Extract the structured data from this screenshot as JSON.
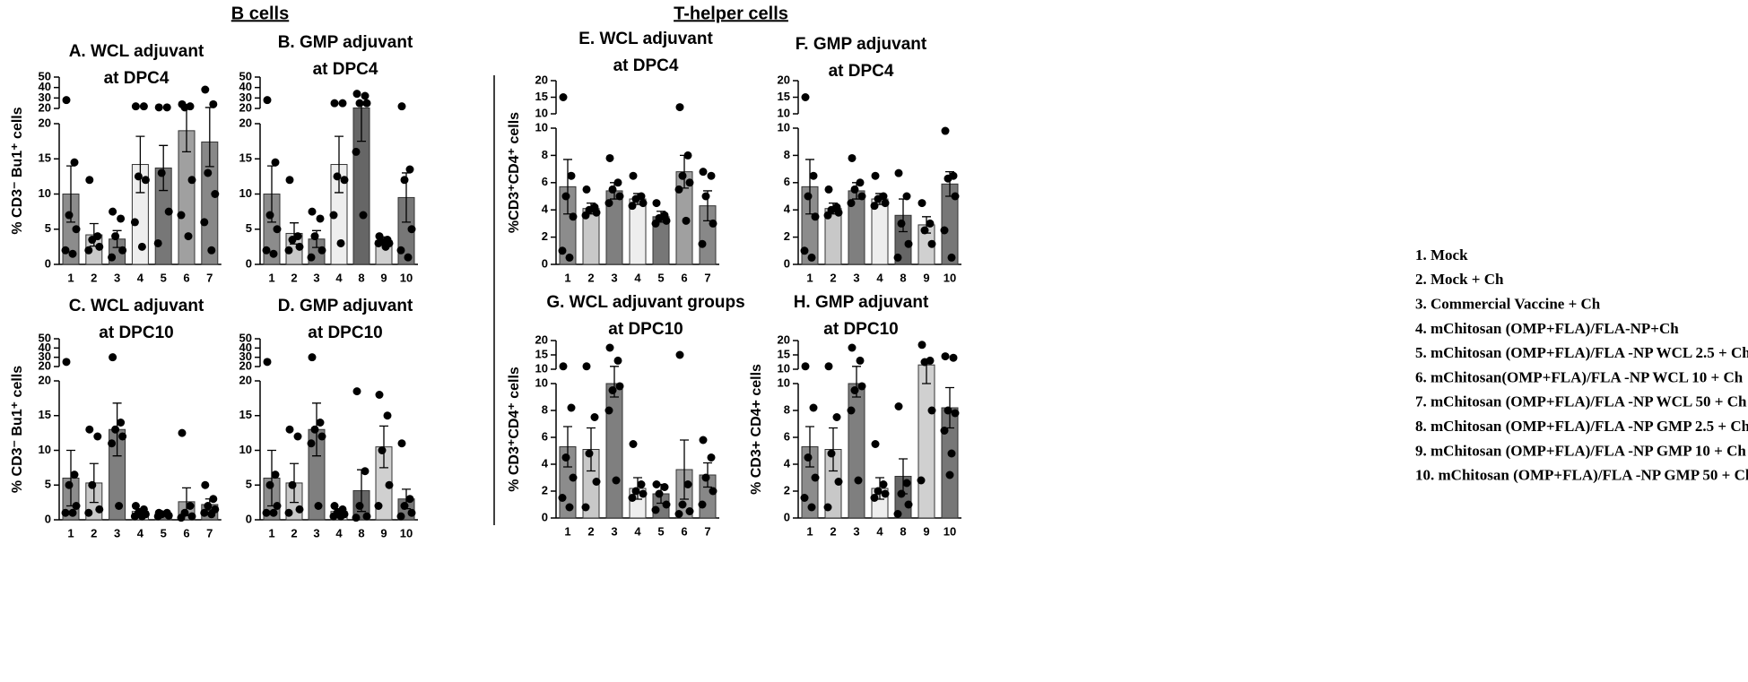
{
  "headers": [
    "B cells",
    "T-helper cells"
  ],
  "legend": [
    "1.   Mock",
    "2.   Mock + Ch",
    "3.   Commercial Vaccine + Ch",
    "4.   mChitosan (OMP+FLA)/FLA-NP+Ch",
    "5.   mChitosan (OMP+FLA)/FLA -NP WCL 2.5 + Ch",
    "6.   mChitosan(OMP+FLA)/FLA -NP WCL 10 + Ch",
    "7.   mChitosan (OMP+FLA)/FLA -NP WCL 50 + Ch",
    "8.   mChitosan (OMP+FLA)/FLA -NP GMP 2.5 + Ch",
    "9.   mChitosan (OMP+FLA)/FLA -NP GMP 10 + Ch",
    "10. mChitosan (OMP+FLA)/FLA -NP GMP 50 + Ch"
  ],
  "chart_data": [
    {
      "type": "bar",
      "title": [
        "A.  WCL adjuvant",
        "at DPC4"
      ],
      "ylabel": "% CD3⁻ Bu1⁺ cells",
      "categories": [
        "1",
        "2",
        "3",
        "4",
        "5",
        "6",
        "7"
      ],
      "colors": [
        "#8c8c8c",
        "#c8c8c8",
        "#7f7f7f",
        "#eeeeee",
        "#777777",
        "#a0a0a0",
        "#888888"
      ],
      "values": [
        10,
        4.2,
        3.6,
        14.2,
        13.7,
        19,
        17.4
      ],
      "errors": [
        4,
        1.6,
        1.2,
        4,
        3.2,
        3,
        3.5
      ],
      "points": [
        [
          28,
          14.5,
          7,
          5,
          2,
          1.5
        ],
        [
          12,
          4,
          3.5,
          2.5,
          2
        ],
        [
          7.5,
          6.5,
          4,
          2,
          1
        ],
        [
          22,
          22,
          12.5,
          12,
          6,
          2.5
        ],
        [
          21,
          21,
          13,
          7.5,
          3
        ],
        [
          24,
          22,
          21,
          12,
          7,
          4
        ],
        [
          38,
          24,
          13,
          10,
          6,
          2
        ]
      ],
      "segments": [
        {
          "ylim": [
            0,
            20
          ],
          "yticks": [
            0,
            5,
            10,
            15,
            20
          ]
        },
        {
          "ylim": [
            20,
            50
          ],
          "yticks": [
            20,
            30,
            40,
            50
          ]
        }
      ]
    },
    {
      "type": "bar",
      "title": [
        "B.  GMP adjuvant",
        "at DPC4"
      ],
      "ylabel": "",
      "categories": [
        "1",
        "2",
        "3",
        "4",
        "8",
        "9",
        "10"
      ],
      "colors": [
        "#8c8c8c",
        "#c8c8c8",
        "#7f7f7f",
        "#eeeeee",
        "#666666",
        "#d0d0d0",
        "#777777"
      ],
      "values": [
        10,
        4.4,
        3.6,
        14.2,
        20.5,
        3.4,
        9.5
      ],
      "errors": [
        4,
        1.5,
        1.2,
        4,
        3,
        0.5,
        3.5
      ],
      "points": [
        [
          28,
          14.5,
          7,
          5,
          2,
          1.5
        ],
        [
          12,
          4,
          3.5,
          2.5,
          2
        ],
        [
          7.5,
          6.5,
          4,
          2,
          1
        ],
        [
          25,
          25,
          12.5,
          12,
          7,
          3
        ],
        [
          34,
          32,
          25,
          25,
          16,
          7
        ],
        [
          4,
          3.5,
          3.2,
          3,
          3,
          2.5
        ],
        [
          22,
          13.5,
          12,
          5,
          2,
          1
        ]
      ],
      "segments": [
        {
          "ylim": [
            0,
            20
          ],
          "yticks": [
            0,
            5,
            10,
            15,
            20
          ]
        },
        {
          "ylim": [
            20,
            50
          ],
          "yticks": [
            20,
            30,
            40,
            50
          ]
        }
      ]
    },
    {
      "type": "bar",
      "title": [
        "C.  WCL adjuvant",
        "at DPC10"
      ],
      "ylabel": "% CD3⁻ Bu1⁺ cells",
      "categories": [
        "1",
        "2",
        "3",
        "4",
        "5",
        "6",
        "7"
      ],
      "colors": [
        "#8c8c8c",
        "#c8c8c8",
        "#7f7f7f",
        "#eeeeee",
        "#777777",
        "#a0a0a0",
        "#888888"
      ],
      "values": [
        6,
        5.3,
        13,
        1.2,
        0.8,
        2.6,
        2.2
      ],
      "errors": [
        4,
        2.8,
        3.8,
        0.4,
        0.3,
        2,
        0.8
      ],
      "points": [
        [
          25,
          6.5,
          5,
          2,
          1,
          1
        ],
        [
          13,
          12,
          5,
          1.5,
          1
        ],
        [
          30,
          14,
          13,
          12,
          11,
          2
        ],
        [
          2,
          1.5,
          1,
          0.8,
          0.5,
          0.5
        ],
        [
          1,
          1,
          0.8,
          0.6,
          0.5
        ],
        [
          12.5,
          2,
          1,
          0.5,
          0.3
        ],
        [
          5,
          3,
          2,
          1.5,
          1,
          0.8
        ]
      ],
      "segments": [
        {
          "ylim": [
            0,
            20
          ],
          "yticks": [
            0,
            5,
            10,
            15,
            20
          ]
        },
        {
          "ylim": [
            20,
            50
          ],
          "yticks": [
            20,
            30,
            40,
            50
          ]
        }
      ]
    },
    {
      "type": "bar",
      "title": [
        "D.  GMP adjuvant",
        "at DPC10"
      ],
      "ylabel": "",
      "categories": [
        "1",
        "2",
        "3",
        "4",
        "8",
        "9",
        "10"
      ],
      "colors": [
        "#8c8c8c",
        "#c8c8c8",
        "#7f7f7f",
        "#eeeeee",
        "#666666",
        "#d0d0d0",
        "#777777"
      ],
      "values": [
        6,
        5.3,
        13,
        1.2,
        4.2,
        10.5,
        3
      ],
      "errors": [
        4,
        2.8,
        3.8,
        0.4,
        3,
        3,
        1.4
      ],
      "points": [
        [
          25,
          6.5,
          5,
          2,
          1,
          1
        ],
        [
          13,
          12,
          5,
          1.5,
          1
        ],
        [
          30,
          14,
          13,
          12,
          11,
          2
        ],
        [
          2,
          1.5,
          1,
          0.8,
          0.5,
          0.5
        ],
        [
          18.5,
          7,
          2,
          0.5,
          0.3
        ],
        [
          18,
          15,
          10,
          5,
          2
        ],
        [
          11,
          3,
          2,
          1,
          0.5
        ]
      ],
      "segments": [
        {
          "ylim": [
            0,
            20
          ],
          "yticks": [
            0,
            5,
            10,
            15,
            20
          ]
        },
        {
          "ylim": [
            20,
            50
          ],
          "yticks": [
            20,
            30,
            40,
            50
          ]
        }
      ]
    },
    {
      "type": "bar",
      "title": [
        "E.  WCL adjuvant",
        "at DPC4"
      ],
      "ylabel": "%CD3⁺CD4⁺ cells",
      "categories": [
        "1",
        "2",
        "3",
        "4",
        "5",
        "6",
        "7"
      ],
      "colors": [
        "#8c8c8c",
        "#c8c8c8",
        "#7f7f7f",
        "#eeeeee",
        "#777777",
        "#a0a0a0",
        "#888888"
      ],
      "values": [
        5.7,
        4.1,
        5.4,
        4.8,
        3.5,
        6.8,
        4.3
      ],
      "errors": [
        2,
        0.4,
        0.6,
        0.4,
        0.4,
        1.2,
        1.1
      ],
      "points": [
        [
          15,
          6.5,
          5,
          3.5,
          1,
          0.5
        ],
        [
          5.5,
          4.2,
          4,
          3.8,
          3.6
        ],
        [
          7.8,
          6,
          5.5,
          5,
          4.5
        ],
        [
          6.5,
          5,
          4.8,
          4.5,
          4.3
        ],
        [
          4.5,
          3.6,
          3.4,
          3.2,
          3
        ],
        [
          12,
          8,
          6.5,
          6,
          5.5,
          3.2
        ],
        [
          6.8,
          6.5,
          5,
          3,
          1.5
        ]
      ],
      "segments": [
        {
          "ylim": [
            0,
            10
          ],
          "yticks": [
            0,
            2,
            4,
            6,
            8,
            10
          ]
        },
        {
          "ylim": [
            10,
            20
          ],
          "yticks": [
            10,
            15,
            20
          ]
        }
      ]
    },
    {
      "type": "bar",
      "title": [
        "F.  GMP adjuvant",
        "at DPC4"
      ],
      "ylabel": "",
      "categories": [
        "1",
        "2",
        "3",
        "4",
        "8",
        "9",
        "10"
      ],
      "colors": [
        "#8c8c8c",
        "#c8c8c8",
        "#7f7f7f",
        "#eeeeee",
        "#666666",
        "#d0d0d0",
        "#777777"
      ],
      "values": [
        5.7,
        4.1,
        5.4,
        4.8,
        3.6,
        2.9,
        5.9
      ],
      "errors": [
        2,
        0.4,
        0.6,
        0.4,
        1.2,
        0.6,
        0.9
      ],
      "points": [
        [
          15,
          6.5,
          5,
          3.5,
          1,
          0.5
        ],
        [
          5.5,
          4.2,
          4,
          3.8,
          3.6
        ],
        [
          7.8,
          6,
          5.5,
          5,
          4.5
        ],
        [
          6.5,
          5,
          4.8,
          4.5,
          4.3
        ],
        [
          6.7,
          5,
          3,
          1.5,
          0.5
        ],
        [
          4.5,
          3,
          2.5,
          1.5
        ],
        [
          9.8,
          6.5,
          6.3,
          5,
          2.5,
          0.5
        ]
      ],
      "segments": [
        {
          "ylim": [
            0,
            10
          ],
          "yticks": [
            0,
            2,
            4,
            6,
            8,
            10
          ]
        },
        {
          "ylim": [
            10,
            20
          ],
          "yticks": [
            10,
            15,
            20
          ]
        }
      ]
    },
    {
      "type": "bar",
      "title": [
        "G. WCL adjuvant groups",
        "at DPC10"
      ],
      "ylabel": "% CD3⁺CD4⁺ cells",
      "categories": [
        "1",
        "2",
        "3",
        "4",
        "5",
        "6",
        "7"
      ],
      "colors": [
        "#8c8c8c",
        "#c8c8c8",
        "#7f7f7f",
        "#eeeeee",
        "#777777",
        "#a0a0a0",
        "#888888"
      ],
      "values": [
        5.3,
        5.1,
        10,
        2.2,
        1.8,
        3.6,
        3.2
      ],
      "errors": [
        1.5,
        1.6,
        1,
        0.8,
        0.7,
        2.2,
        0.9
      ],
      "points": [
        [
          11,
          8.2,
          4.5,
          3,
          1.5,
          0.8
        ],
        [
          11,
          7.5,
          4.8,
          2.7,
          0.8
        ],
        [
          17.5,
          13,
          9.5,
          9.8,
          8,
          2.8
        ],
        [
          5.5,
          2.5,
          2,
          1.8,
          1.5
        ],
        [
          2.5,
          2.3,
          1.8,
          1,
          0.6
        ],
        [
          15,
          2.5,
          1,
          0.5,
          0.3
        ],
        [
          5.8,
          4.5,
          3,
          2,
          1
        ]
      ],
      "segments": [
        {
          "ylim": [
            0,
            10
          ],
          "yticks": [
            0,
            2,
            4,
            6,
            8,
            10
          ]
        },
        {
          "ylim": [
            10,
            20
          ],
          "yticks": [
            10,
            15,
            20
          ]
        }
      ]
    },
    {
      "type": "bar",
      "title": [
        "H.  GMP adjuvant",
        "at DPC10"
      ],
      "ylabel": "% CD3+ CD4+ cells",
      "categories": [
        "1",
        "2",
        "3",
        "4",
        "8",
        "9",
        "10"
      ],
      "colors": [
        "#8c8c8c",
        "#c8c8c8",
        "#7f7f7f",
        "#eeeeee",
        "#666666",
        "#d0d0d0",
        "#777777"
      ],
      "values": [
        5.3,
        5.1,
        10,
        2.2,
        3.1,
        11.5,
        8.2
      ],
      "errors": [
        1.5,
        1.6,
        1,
        0.8,
        1.3,
        1.5,
        1.5
      ],
      "points": [
        [
          11,
          8.2,
          4.5,
          3,
          1.5,
          0.8
        ],
        [
          11,
          7.5,
          4.8,
          2.7,
          0.8
        ],
        [
          17.5,
          13,
          9.5,
          9.8,
          8,
          2.8
        ],
        [
          5.5,
          2.5,
          2,
          1.8,
          1.5
        ],
        [
          8.3,
          2.6,
          1.8,
          1,
          0.3
        ],
        [
          18.5,
          13,
          12.5,
          8,
          2.8
        ],
        [
          14.5,
          14,
          8,
          7.8,
          6.5,
          4.8,
          3.2
        ]
      ],
      "segments": [
        {
          "ylim": [
            0,
            10
          ],
          "yticks": [
            0,
            2,
            4,
            6,
            8,
            10
          ]
        },
        {
          "ylim": [
            10,
            20
          ],
          "yticks": [
            10,
            15,
            20
          ]
        }
      ]
    }
  ]
}
